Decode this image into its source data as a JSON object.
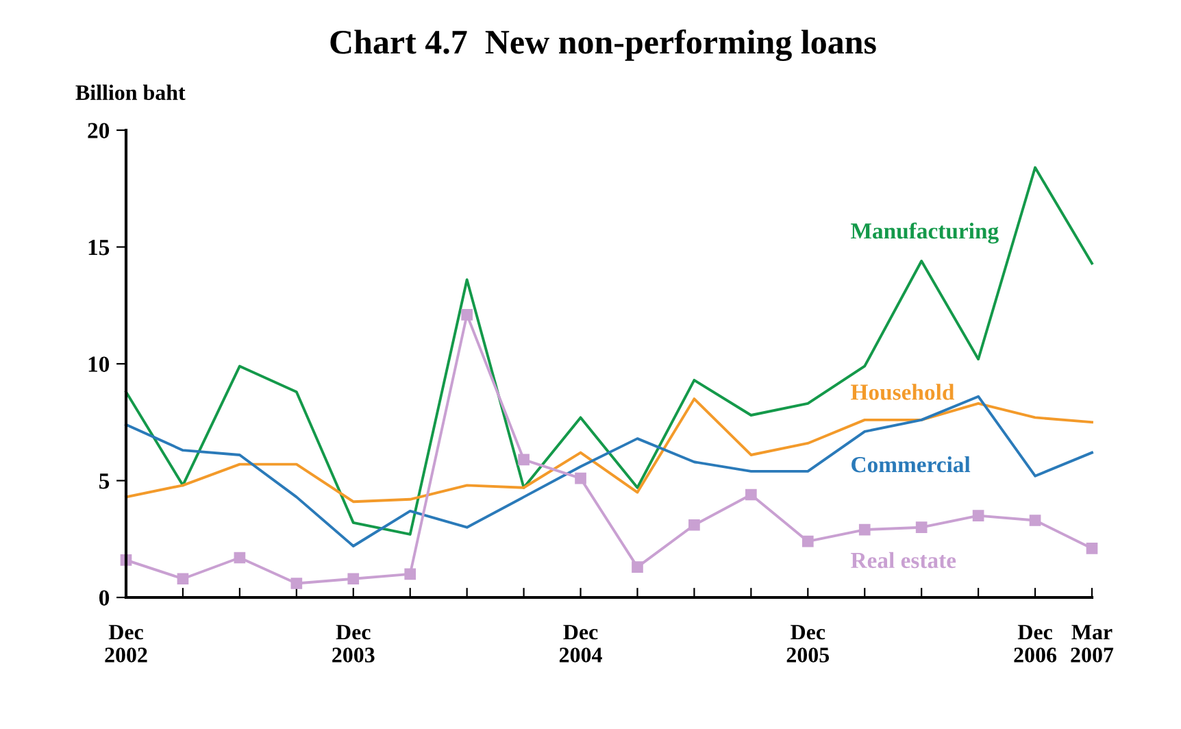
{
  "chart_data": {
    "type": "line",
    "title": "Chart 4.7  New non-performing loans",
    "ylabel": "Billion baht",
    "categories": [
      "Dec\n2002",
      null,
      null,
      null,
      "Dec\n2003",
      null,
      null,
      null,
      "Dec\n2004",
      null,
      null,
      null,
      "Dec\n2005",
      null,
      null,
      null,
      "Dec\n2006",
      "Mar\n2007"
    ],
    "ylim": [
      0,
      20
    ],
    "yticks": [
      0,
      5,
      10,
      15,
      20
    ],
    "grid": false,
    "legend": false,
    "series": [
      {
        "name": "Manufacturing",
        "color": "#14994a",
        "marker": "none",
        "values": [
          8.8,
          4.8,
          9.9,
          8.8,
          3.2,
          2.7,
          13.6,
          4.7,
          7.7,
          4.7,
          9.3,
          7.8,
          8.3,
          9.9,
          14.4,
          10.2,
          18.4,
          14.3
        ]
      },
      {
        "name": "Household",
        "color": "#f39a2a",
        "marker": "none",
        "values": [
          4.3,
          4.8,
          5.7,
          5.7,
          4.1,
          4.2,
          4.8,
          4.7,
          6.2,
          4.5,
          8.5,
          6.1,
          6.6,
          7.6,
          7.6,
          8.3,
          7.7,
          7.5
        ]
      },
      {
        "name": "Commercial",
        "color": "#2a7ab9",
        "marker": "none",
        "values": [
          7.4,
          6.3,
          6.1,
          4.3,
          2.2,
          3.7,
          3.0,
          4.3,
          5.6,
          6.8,
          5.8,
          5.4,
          5.4,
          7.1,
          7.6,
          8.6,
          5.2,
          6.2
        ]
      },
      {
        "name": "Real estate",
        "color": "#c9a0d2",
        "marker": "square",
        "values": [
          1.6,
          0.8,
          1.7,
          0.6,
          0.8,
          1.0,
          12.1,
          5.9,
          5.1,
          1.3,
          3.1,
          4.4,
          2.4,
          2.9,
          3.0,
          3.5,
          3.3,
          2.1
        ]
      }
    ]
  }
}
